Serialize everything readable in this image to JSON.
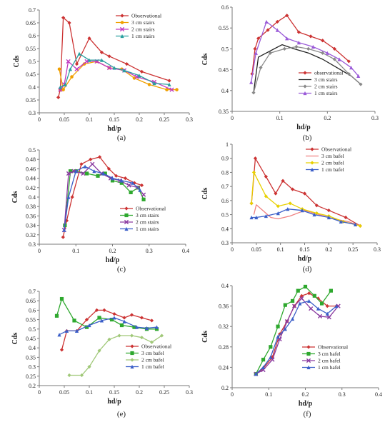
{
  "chart_data": [
    {
      "type": "line",
      "panel_label": "(a)",
      "xlabel": "hd/p",
      "ylabel": "Cds",
      "xlim": [
        0,
        0.3
      ],
      "ylim": [
        0.3,
        0.7
      ],
      "x_ticks": [
        "0",
        "0.05",
        "0.1",
        "0.15",
        "0.2",
        "0.25",
        "0.3"
      ],
      "y_ticks": [
        "0.3",
        "0.35",
        "0.4",
        "0.45",
        "0.5",
        "0.55",
        "0.6",
        "0.65",
        "0.7"
      ],
      "legend_position": "top-right",
      "series": [
        {
          "name": "Observational",
          "color": "#cc3333",
          "marker": "diamond",
          "x": [
            0.038,
            0.042,
            0.048,
            0.06,
            0.075,
            0.1,
            0.125,
            0.14,
            0.175,
            0.205,
            0.26
          ],
          "y": [
            0.36,
            0.39,
            0.67,
            0.65,
            0.49,
            0.59,
            0.535,
            0.52,
            0.49,
            0.46,
            0.425
          ]
        },
        {
          "name": "3 cm stairs",
          "color": "#f0a000",
          "marker": "circle",
          "x": [
            0.04,
            0.048,
            0.065,
            0.09,
            0.115,
            0.14,
            0.165,
            0.19,
            0.22,
            0.255,
            0.275
          ],
          "y": [
            0.47,
            0.39,
            0.44,
            0.49,
            0.5,
            0.475,
            0.47,
            0.435,
            0.41,
            0.39,
            0.39
          ]
        },
        {
          "name": "2 cm stairs",
          "color": "#c03ac0",
          "marker": "x",
          "x": [
            0.042,
            0.05,
            0.058,
            0.075,
            0.095,
            0.115,
            0.14,
            0.17,
            0.195,
            0.23,
            0.265
          ],
          "y": [
            0.39,
            0.41,
            0.5,
            0.47,
            0.5,
            0.5,
            0.475,
            0.465,
            0.44,
            0.42,
            0.39
          ]
        },
        {
          "name": "1 cm stairs",
          "color": "#2a9f9f",
          "marker": "triangle",
          "x": [
            0.042,
            0.052,
            0.062,
            0.08,
            0.1,
            0.125,
            0.15,
            0.17,
            0.2,
            0.23,
            0.26
          ],
          "y": [
            0.4,
            0.41,
            0.47,
            0.53,
            0.505,
            0.505,
            0.475,
            0.465,
            0.445,
            0.415,
            0.41
          ]
        }
      ]
    },
    {
      "type": "line",
      "panel_label": "(b)",
      "xlabel": "hd/p",
      "ylabel": "Cds",
      "xlim": [
        0,
        0.3
      ],
      "ylim": [
        0.35,
        0.6
      ],
      "x_ticks": [
        "0",
        "0.1",
        "0.2",
        "0.3"
      ],
      "y_ticks": [
        "0.35",
        "0.4",
        "0.45",
        "0.5",
        "0.55",
        "0.6"
      ],
      "legend_position": "top-right",
      "series": [
        {
          "name": "observational",
          "color": "#cc3333",
          "marker": "diamond",
          "x": [
            0.042,
            0.048,
            0.055,
            0.075,
            0.095,
            0.115,
            0.14,
            0.165,
            0.19,
            0.215,
            0.245
          ],
          "y": [
            0.44,
            0.5,
            0.525,
            0.545,
            0.565,
            0.58,
            0.54,
            0.53,
            0.52,
            0.5,
            0.47
          ]
        },
        {
          "name": "3 cm stairs",
          "color": "#222222",
          "marker": "none",
          "x": [
            0.045,
            0.055,
            0.08,
            0.105,
            0.13,
            0.16,
            0.19,
            0.22,
            0.25,
            0.27
          ],
          "y": [
            0.395,
            0.48,
            0.495,
            0.51,
            0.5,
            0.49,
            0.475,
            0.455,
            0.435,
            0.415
          ]
        },
        {
          "name": "2 cm stairs",
          "color": "#8a8a8a",
          "marker": "diamond",
          "x": [
            0.045,
            0.06,
            0.08,
            0.11,
            0.135,
            0.16,
            0.19,
            0.215,
            0.245,
            0.27
          ],
          "y": [
            0.395,
            0.455,
            0.49,
            0.5,
            0.505,
            0.5,
            0.49,
            0.475,
            0.44,
            0.415
          ]
        },
        {
          "name": "1 cm stairs",
          "color": "#9a5ad8",
          "marker": "triangle",
          "x": [
            0.04,
            0.05,
            0.072,
            0.095,
            0.115,
            0.14,
            0.17,
            0.2,
            0.225,
            0.25,
            0.265
          ],
          "y": [
            0.42,
            0.49,
            0.565,
            0.545,
            0.525,
            0.515,
            0.505,
            0.49,
            0.475,
            0.455,
            0.435
          ]
        }
      ]
    },
    {
      "type": "line",
      "panel_label": "(c)",
      "xlabel": "hd/p",
      "ylabel": "Cds",
      "xlim": [
        0,
        0.4
      ],
      "ylim": [
        0.3,
        0.5
      ],
      "x_ticks": [
        "0",
        "0.1",
        "0.2",
        "0.3",
        "0.4"
      ],
      "y_ticks": [
        "0.3",
        "0.32",
        "0.34",
        "0.36",
        "0.38",
        "0.4",
        "0.42",
        "0.44",
        "0.46",
        "0.48",
        "0.5"
      ],
      "legend_position": "bottom-right",
      "series": [
        {
          "name": "Observational",
          "color": "#cc3333",
          "marker": "diamond",
          "x": [
            0.065,
            0.075,
            0.09,
            0.115,
            0.14,
            0.165,
            0.19,
            0.21,
            0.235,
            0.26,
            0.28
          ],
          "y": [
            0.315,
            0.35,
            0.4,
            0.47,
            0.48,
            0.485,
            0.46,
            0.445,
            0.44,
            0.43,
            0.425
          ]
        },
        {
          "name": "3 cm stairs",
          "color": "#2ea82e",
          "marker": "square",
          "x": [
            0.07,
            0.085,
            0.1,
            0.13,
            0.16,
            0.18,
            0.2,
            0.225,
            0.25,
            0.27,
            0.285
          ],
          "y": [
            0.34,
            0.455,
            0.455,
            0.45,
            0.445,
            0.45,
            0.435,
            0.43,
            0.41,
            0.42,
            0.395
          ]
        },
        {
          "name": "2 cm stairs",
          "color": "#8a3aa0",
          "marker": "x",
          "x": [
            0.068,
            0.08,
            0.095,
            0.12,
            0.145,
            0.17,
            0.195,
            0.22,
            0.245,
            0.27,
            0.285
          ],
          "y": [
            0.33,
            0.45,
            0.455,
            0.45,
            0.47,
            0.45,
            0.44,
            0.435,
            0.425,
            0.42,
            0.405
          ]
        },
        {
          "name": "1 cm stairs",
          "color": "#3a5ec8",
          "marker": "triangle",
          "x": [
            0.068,
            0.08,
            0.1,
            0.125,
            0.15,
            0.175,
            0.2,
            0.225,
            0.255,
            0.275
          ],
          "y": [
            0.33,
            0.4,
            0.455,
            0.465,
            0.455,
            0.45,
            0.44,
            0.435,
            0.43,
            0.415
          ]
        }
      ]
    },
    {
      "type": "line",
      "panel_label": "(d)",
      "xlabel": "hd/p",
      "ylabel": "Cds",
      "xlim": [
        0,
        0.3
      ],
      "ylim": [
        0.3,
        1
      ],
      "x_ticks": [
        "0",
        "0.05",
        "0.1",
        "0.15",
        "0.2",
        "0.25",
        "0.3"
      ],
      "y_ticks": [
        "0.3",
        "0.4",
        "0.5",
        "0.6",
        "0.7",
        "0.8",
        "0.9",
        "1"
      ],
      "legend_position": "top-right",
      "series": [
        {
          "name": "Observational",
          "color": "#cc3333",
          "marker": "diamond",
          "x": [
            0.04,
            0.048,
            0.07,
            0.09,
            0.105,
            0.125,
            0.15,
            0.175,
            0.2,
            0.235,
            0.265
          ],
          "y": [
            0.58,
            0.9,
            0.77,
            0.65,
            0.74,
            0.68,
            0.65,
            0.565,
            0.53,
            0.48,
            0.42
          ]
        },
        {
          "name": "3 cm bafel",
          "color": "#f08080",
          "marker": "none",
          "x": [
            0.045,
            0.05,
            0.08,
            0.095,
            0.12,
            0.15,
            0.18,
            0.21,
            0.24,
            0.265
          ],
          "y": [
            0.5,
            0.57,
            0.48,
            0.47,
            0.49,
            0.53,
            0.5,
            0.47,
            0.45,
            0.42
          ]
        },
        {
          "name": "2 cm bafel",
          "color": "#e8d000",
          "marker": "diamond",
          "x": [
            0.04,
            0.045,
            0.07,
            0.095,
            0.12,
            0.145,
            0.175,
            0.2,
            0.23,
            0.265
          ],
          "y": [
            0.58,
            0.8,
            0.63,
            0.56,
            0.58,
            0.54,
            0.51,
            0.49,
            0.45,
            0.42
          ]
        },
        {
          "name": "1 cm bafel",
          "color": "#3a5ec8",
          "marker": "triangle",
          "x": [
            0.04,
            0.05,
            0.07,
            0.095,
            0.115,
            0.145,
            0.17,
            0.2,
            0.225,
            0.255
          ],
          "y": [
            0.48,
            0.48,
            0.49,
            0.51,
            0.54,
            0.53,
            0.5,
            0.48,
            0.45,
            0.43
          ]
        }
      ]
    },
    {
      "type": "line",
      "panel_label": "(e)",
      "xlabel": "hd/p",
      "ylabel": "Cds",
      "xlim": [
        0,
        0.3
      ],
      "ylim": [
        0.2,
        0.7
      ],
      "x_ticks": [
        "0",
        "0.05",
        "0.1",
        "0.15",
        "0.2",
        "0.25",
        "0.3"
      ],
      "y_ticks": [
        "0.2",
        "0.25",
        "0.3",
        "0.35",
        "0.4",
        "0.45",
        "0.5",
        "0.55",
        "0.6",
        "0.65",
        "0.7"
      ],
      "legend_position": "bottom-right",
      "series": [
        {
          "name": "Observational",
          "color": "#cc3333",
          "marker": "diamond",
          "x": [
            0.045,
            0.055,
            0.075,
            0.095,
            0.115,
            0.13,
            0.15,
            0.17,
            0.185,
            0.205,
            0.225
          ],
          "y": [
            0.39,
            0.49,
            0.49,
            0.55,
            0.6,
            0.6,
            0.58,
            0.56,
            0.575,
            0.56,
            0.545
          ]
        },
        {
          "name": "3 cm bafel",
          "color": "#2ea82e",
          "marker": "square",
          "x": [
            0.035,
            0.045,
            0.07,
            0.095,
            0.12,
            0.145,
            0.165,
            0.19,
            0.215,
            0.235
          ],
          "y": [
            0.57,
            0.66,
            0.545,
            0.51,
            0.56,
            0.55,
            0.52,
            0.51,
            0.5,
            0.5
          ]
        },
        {
          "name": "2 cm bafel",
          "color": "#a0c878",
          "marker": "diamond",
          "x": [
            0.06,
            0.085,
            0.1,
            0.12,
            0.14,
            0.16,
            0.185,
            0.205,
            0.225,
            0.245
          ],
          "y": [
            0.255,
            0.255,
            0.3,
            0.385,
            0.445,
            0.465,
            0.465,
            0.455,
            0.43,
            0.465
          ]
        },
        {
          "name": "1 cm bafel",
          "color": "#3a5ec8",
          "marker": "triangle",
          "x": [
            0.04,
            0.055,
            0.075,
            0.1,
            0.125,
            0.15,
            0.17,
            0.195,
            0.215,
            0.235
          ],
          "y": [
            0.47,
            0.49,
            0.49,
            0.52,
            0.545,
            0.56,
            0.54,
            0.51,
            0.505,
            0.51
          ]
        }
      ]
    },
    {
      "type": "line",
      "panel_label": "(f)",
      "xlabel": "hd/p",
      "ylabel": "Cds",
      "xlim": [
        0,
        0.4
      ],
      "ylim": [
        0.2,
        0.4
      ],
      "x_ticks": [
        "0",
        "0.1",
        "0.2",
        "0.3",
        "0.4"
      ],
      "y_ticks": [
        "0.2",
        "0.24",
        "0.28",
        "0.32",
        "0.36",
        "0.4"
      ],
      "legend_position": "bottom-right",
      "series": [
        {
          "name": "Observational",
          "color": "#cc3333",
          "marker": "diamond",
          "x": [
            0.065,
            0.085,
            0.11,
            0.13,
            0.15,
            0.17,
            0.19,
            0.21,
            0.235,
            0.26,
            0.285
          ],
          "y": [
            0.227,
            0.238,
            0.26,
            0.305,
            0.33,
            0.36,
            0.38,
            0.385,
            0.375,
            0.36,
            0.36
          ]
        },
        {
          "name": "3 cm bafel",
          "color": "#2ea82e",
          "marker": "square",
          "x": [
            0.065,
            0.085,
            0.105,
            0.125,
            0.145,
            0.165,
            0.18,
            0.2,
            0.225,
            0.245,
            0.27
          ],
          "y": [
            0.227,
            0.255,
            0.28,
            0.32,
            0.362,
            0.37,
            0.39,
            0.398,
            0.38,
            0.365,
            0.39
          ]
        },
        {
          "name": "2 cm bafel",
          "color": "#8a3aa0",
          "marker": "x",
          "x": [
            0.065,
            0.085,
            0.11,
            0.13,
            0.15,
            0.17,
            0.19,
            0.215,
            0.24,
            0.265,
            0.29
          ],
          "y": [
            0.227,
            0.235,
            0.255,
            0.295,
            0.33,
            0.36,
            0.375,
            0.355,
            0.34,
            0.338,
            0.36
          ]
        },
        {
          "name": "1 cm bafel",
          "color": "#3a5ec8",
          "marker": "triangle",
          "x": [
            0.065,
            0.085,
            0.105,
            0.125,
            0.145,
            0.165,
            0.185,
            0.21,
            0.235,
            0.26,
            0.285
          ],
          "y": [
            0.227,
            0.24,
            0.26,
            0.3,
            0.315,
            0.335,
            0.365,
            0.37,
            0.355,
            0.345,
            0.36
          ]
        }
      ]
    }
  ]
}
